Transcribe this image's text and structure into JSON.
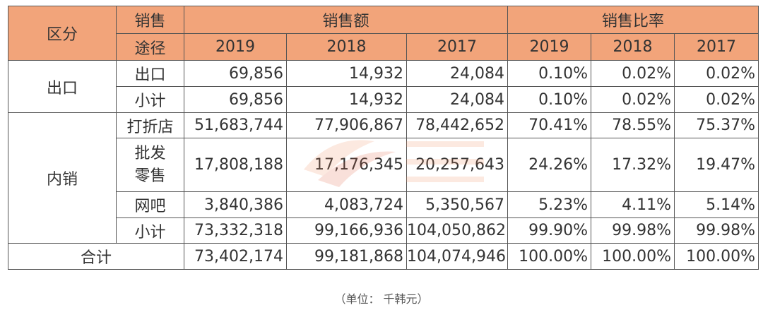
{
  "header": {
    "category": "区分",
    "channel_line1": "销售",
    "channel_line2": "途径",
    "sales_amount": "销售额",
    "sales_ratio": "销售比率",
    "years": [
      "2019",
      "2018",
      "2017"
    ]
  },
  "export": {
    "label": "出口",
    "rows": [
      {
        "channel": "出口",
        "values": [
          "69,856",
          "14,932",
          "24,084",
          "0.10%",
          "0.02%",
          "0.02%"
        ]
      },
      {
        "channel": "小计",
        "values": [
          "69,856",
          "14,932",
          "24,084",
          "0.10%",
          "0.02%",
          "0.02%"
        ]
      }
    ]
  },
  "domestic": {
    "label": "内销",
    "rows": [
      {
        "channel": "打折店",
        "values": [
          "51,683,744",
          "77,906,867",
          "78,442,652",
          "70.41%",
          "78.55%",
          "75.37%"
        ]
      },
      {
        "channel_line1": "批发",
        "channel_line2": "零售",
        "values": [
          "17,808,188",
          "17,176,345",
          "20,257,643",
          "24.26%",
          "17.32%",
          "19.47%"
        ]
      },
      {
        "channel": "网吧",
        "values": [
          "3,840,386",
          "4,083,724",
          "5,350,567",
          "5.23%",
          "4.11%",
          "5.14%"
        ]
      },
      {
        "channel": "小计",
        "values": [
          "73,332,318",
          "99,166,936",
          "104,050,862",
          "99.90%",
          "99.98%",
          "99.98%"
        ]
      }
    ]
  },
  "total": {
    "label": "合计",
    "values": [
      "73,402,174",
      "99,181,868",
      "104,074,946",
      "100.00%",
      "100.00%",
      "100.00%"
    ]
  },
  "footnote": "（单位： 千韩元）",
  "colors": {
    "header_bg": "#f2a47a",
    "border": "#555555",
    "text": "#333333"
  }
}
